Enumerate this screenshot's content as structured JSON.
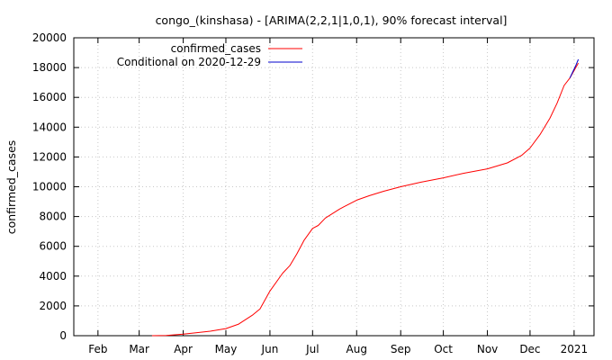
{
  "chart_data": {
    "type": "line",
    "title": "congo_(kinshasa) -  [ARIMA(2,2,1|1,0,1), 90% forecast interval]",
    "xlabel": "",
    "ylabel": "confirmed_cases",
    "ylim": [
      0,
      20000
    ],
    "yticks": [
      "0",
      "2000",
      "4000",
      "6000",
      "8000",
      "10000",
      "12000",
      "14000",
      "16000",
      "18000",
      "20000"
    ],
    "xticks": [
      {
        "label": "Feb",
        "date": "2020-02-01"
      },
      {
        "label": "Mar",
        "date": "2020-03-01"
      },
      {
        "label": "Apr",
        "date": "2020-04-01"
      },
      {
        "label": "May",
        "date": "2020-05-01"
      },
      {
        "label": "Jun",
        "date": "2020-06-01"
      },
      {
        "label": "Jul",
        "date": "2020-07-01"
      },
      {
        "label": "Aug",
        "date": "2020-08-01"
      },
      {
        "label": "Sep",
        "date": "2020-09-01"
      },
      {
        "label": "Oct",
        "date": "2020-10-01"
      },
      {
        "label": "Nov",
        "date": "2020-11-01"
      },
      {
        "label": "Dec",
        "date": "2020-12-01"
      },
      {
        "label": "2021",
        "date": "2021-01-01"
      }
    ],
    "xlim": [
      "2020-01-15",
      "2021-01-15"
    ],
    "grid": true,
    "legend_position": "top-left",
    "series": [
      {
        "name": "confirmed_cases",
        "color": "#ff0000",
        "points": [
          [
            "2020-03-10",
            0
          ],
          [
            "2020-03-20",
            20
          ],
          [
            "2020-04-01",
            110
          ],
          [
            "2020-04-10",
            200
          ],
          [
            "2020-04-20",
            300
          ],
          [
            "2020-05-01",
            480
          ],
          [
            "2020-05-10",
            780
          ],
          [
            "2020-05-20",
            1400
          ],
          [
            "2020-05-25",
            1800
          ],
          [
            "2020-06-01",
            3000
          ],
          [
            "2020-06-10",
            4200
          ],
          [
            "2020-06-15",
            4700
          ],
          [
            "2020-06-20",
            5500
          ],
          [
            "2020-06-25",
            6400
          ],
          [
            "2020-07-01",
            7200
          ],
          [
            "2020-07-05",
            7400
          ],
          [
            "2020-07-10",
            7900
          ],
          [
            "2020-07-20",
            8500
          ],
          [
            "2020-08-01",
            9100
          ],
          [
            "2020-08-10",
            9400
          ],
          [
            "2020-08-20",
            9700
          ],
          [
            "2020-09-01",
            10000
          ],
          [
            "2020-09-15",
            10300
          ],
          [
            "2020-10-01",
            10600
          ],
          [
            "2020-10-15",
            10900
          ],
          [
            "2020-11-01",
            11200
          ],
          [
            "2020-11-15",
            11600
          ],
          [
            "2020-11-25",
            12100
          ],
          [
            "2020-12-01",
            12600
          ],
          [
            "2020-12-08",
            13500
          ],
          [
            "2020-12-15",
            14600
          ],
          [
            "2020-12-20",
            15600
          ],
          [
            "2020-12-25",
            16800
          ],
          [
            "2020-12-29",
            17300
          ],
          [
            "2021-01-01",
            17800
          ],
          [
            "2021-01-04",
            18300
          ]
        ]
      },
      {
        "name": "Conditional on 2020-12-29",
        "color": "#0000cc",
        "points": [
          [
            "2020-12-29",
            17300
          ],
          [
            "2020-12-31",
            17700
          ],
          [
            "2021-01-02",
            18100
          ],
          [
            "2021-01-04",
            18550
          ]
        ]
      }
    ]
  }
}
